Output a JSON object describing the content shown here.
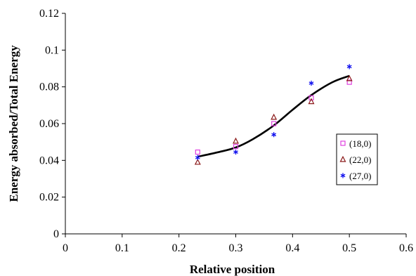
{
  "chart_data": {
    "type": "scatter",
    "title": "",
    "xlabel": "Relative position",
    "ylabel": "Energy absorbed/Total Energy",
    "xlim": [
      0,
      0.6
    ],
    "ylim": [
      0,
      0.12
    ],
    "x_ticks": [
      "0",
      "0.1",
      "0.2",
      "0.3",
      "0.4",
      "0.5",
      "0.6"
    ],
    "y_ticks": [
      "0",
      "0.02",
      "0.04",
      "0.06",
      "0.08",
      "0.1",
      "0.12"
    ],
    "grid": false,
    "legend_position": "right",
    "series": [
      {
        "name": "(18,0)",
        "marker": "square-open",
        "color": "#e040e0",
        "points": [
          [
            0.233,
            0.0445
          ],
          [
            0.3,
            0.0475
          ],
          [
            0.367,
            0.06
          ],
          [
            0.433,
            0.074
          ],
          [
            0.5,
            0.0825
          ]
        ]
      },
      {
        "name": "(22,0)",
        "marker": "triangle-open",
        "color": "#8b1a1a",
        "points": [
          [
            0.233,
            0.039
          ],
          [
            0.3,
            0.0505
          ],
          [
            0.367,
            0.0635
          ],
          [
            0.433,
            0.072
          ],
          [
            0.5,
            0.0845
          ]
        ]
      },
      {
        "name": "(27,0)",
        "marker": "asterisk",
        "color": "#1010ee",
        "points": [
          [
            0.233,
            0.0415
          ],
          [
            0.3,
            0.0445
          ],
          [
            0.367,
            0.054
          ],
          [
            0.433,
            0.082
          ],
          [
            0.5,
            0.091
          ]
        ]
      }
    ],
    "trendline": {
      "color": "#000000",
      "points": [
        [
          0.233,
          0.042
        ],
        [
          0.27,
          0.0445
        ],
        [
          0.3,
          0.047
        ],
        [
          0.33,
          0.0515
        ],
        [
          0.367,
          0.059
        ],
        [
          0.4,
          0.0675
        ],
        [
          0.433,
          0.0755
        ],
        [
          0.47,
          0.0825
        ],
        [
          0.5,
          0.086
        ]
      ]
    }
  }
}
